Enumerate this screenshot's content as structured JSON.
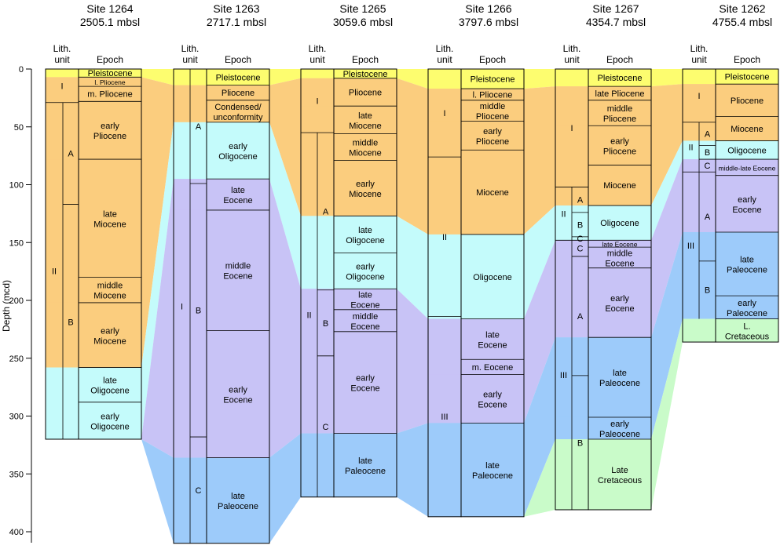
{
  "figure": {
    "axis": {
      "label": "Depth (mcd)",
      "ticks": [
        0,
        50,
        100,
        150,
        200,
        250,
        300,
        350,
        400
      ],
      "range": [
        0,
        410
      ]
    },
    "headers": {
      "lith": [
        "Lith.",
        "unit"
      ],
      "epoch": "Epoch"
    }
  },
  "colors": {
    "pleistocene": "#fdfd6f",
    "neogene": "#fbcd7e",
    "oligocene": "#c4fbfb",
    "eocene": "#c8c3f6",
    "paleocene": "#9dcbfa",
    "cretaceous": "#c9fbc9"
  },
  "sites": [
    {
      "name": "Site 1264",
      "depth": "2505.1 mbsl",
      "bottom": 320,
      "epochs": [
        {
          "label": "Pleistocene",
          "top": 0,
          "bottom": 7,
          "color": "pleistocene"
        },
        {
          "label": "l. Pliocene",
          "top": 7,
          "bottom": 15,
          "color": "neogene",
          "small": true
        },
        {
          "label": "m. Pliocene",
          "top": 15,
          "bottom": 28,
          "color": "neogene"
        },
        {
          "label": "early Pliocene",
          "top": 28,
          "bottom": 78,
          "color": "neogene"
        },
        {
          "label": "late Miocene",
          "top": 78,
          "bottom": 180,
          "color": "neogene"
        },
        {
          "label": "middle Miocene",
          "top": 180,
          "bottom": 202,
          "color": "neogene"
        },
        {
          "label": "early Miocene",
          "top": 202,
          "bottom": 258,
          "color": "neogene"
        },
        {
          "label": "late Oligocene",
          "top": 258,
          "bottom": 288,
          "color": "oligocene"
        },
        {
          "label": "early Oligocene",
          "top": 288,
          "bottom": 320,
          "color": "oligocene"
        }
      ],
      "units": [
        {
          "label": "I",
          "top": 0,
          "bottom": 29
        },
        {
          "label": "II",
          "top": 29,
          "bottom": 320,
          "subs": [
            {
              "label": "A",
              "top": 29,
              "bottom": 117
            },
            {
              "label": "B",
              "top": 117,
              "bottom": 320
            }
          ]
        }
      ]
    },
    {
      "name": "Site 1263",
      "depth": "2717.1 mbsl",
      "bottom": 410,
      "epochs": [
        {
          "label": "Pleistocene",
          "top": 0,
          "bottom": 14,
          "color": "pleistocene"
        },
        {
          "label": "Pliocene",
          "top": 14,
          "bottom": 27,
          "color": "neogene"
        },
        {
          "label": "Condensed/ unconformity",
          "top": 27,
          "bottom": 46,
          "color": "neogene"
        },
        {
          "label": "early Oligocene",
          "top": 46,
          "bottom": 95,
          "color": "oligocene"
        },
        {
          "label": "late Eocene",
          "top": 95,
          "bottom": 122,
          "color": "eocene"
        },
        {
          "label": "middle Eocene",
          "top": 122,
          "bottom": 226,
          "color": "eocene"
        },
        {
          "label": "early Eocene",
          "top": 226,
          "bottom": 336,
          "color": "eocene"
        },
        {
          "label": "late Paleocene",
          "top": 336,
          "bottom": 410,
          "color": "paleocene"
        }
      ],
      "units": [
        {
          "label": "I",
          "top": 0,
          "bottom": 410,
          "subs": [
            {
              "label": "A",
              "top": 0,
              "bottom": 99
            },
            {
              "label": "B",
              "top": 99,
              "bottom": 318
            },
            {
              "label": "C",
              "top": 318,
              "bottom": 410
            }
          ]
        }
      ]
    },
    {
      "name": "Site 1265",
      "depth": "3059.6 mbsl",
      "bottom": 370,
      "epochs": [
        {
          "label": "Pleistocene",
          "top": 0,
          "bottom": 8,
          "color": "pleistocene"
        },
        {
          "label": "Pliocene",
          "top": 8,
          "bottom": 32,
          "color": "neogene"
        },
        {
          "label": "late Miocene",
          "top": 32,
          "bottom": 56,
          "color": "neogene"
        },
        {
          "label": "middle Miocene",
          "top": 56,
          "bottom": 79,
          "color": "neogene"
        },
        {
          "label": "early Miocene",
          "top": 79,
          "bottom": 127,
          "color": "neogene"
        },
        {
          "label": "late Oligocene",
          "top": 127,
          "bottom": 159,
          "color": "oligocene"
        },
        {
          "label": "early Oligocene",
          "top": 159,
          "bottom": 190,
          "color": "oligocene"
        },
        {
          "label": "late Eocene",
          "top": 190,
          "bottom": 208,
          "color": "eocene"
        },
        {
          "label": "middle Eocene",
          "top": 208,
          "bottom": 227,
          "color": "eocene"
        },
        {
          "label": "early Eocene",
          "top": 227,
          "bottom": 315,
          "color": "eocene"
        },
        {
          "label": "late Paleocene",
          "top": 315,
          "bottom": 370,
          "color": "paleocene"
        }
      ],
      "units": [
        {
          "label": "I",
          "top": 0,
          "bottom": 55
        },
        {
          "label": "II",
          "top": 55,
          "bottom": 370,
          "subs": [
            {
              "label": "A",
              "top": 55,
              "bottom": 191
            },
            {
              "label": "B",
              "top": 191,
              "bottom": 248
            },
            {
              "label": "C",
              "top": 248,
              "bottom": 370
            }
          ]
        }
      ]
    },
    {
      "name": "Site 1266",
      "depth": "3797.6 mbsl",
      "bottom": 387,
      "epochs": [
        {
          "label": "Pleistocene",
          "top": 0,
          "bottom": 17,
          "color": "pleistocene"
        },
        {
          "label": "l. Pliocene",
          "top": 17,
          "bottom": 27,
          "color": "neogene"
        },
        {
          "label": "middle Pliocene",
          "top": 27,
          "bottom": 45,
          "color": "neogene"
        },
        {
          "label": "early Pliocene",
          "top": 45,
          "bottom": 70,
          "color": "neogene"
        },
        {
          "label": "Miocene",
          "top": 70,
          "bottom": 143,
          "color": "neogene"
        },
        {
          "label": "Oligocene",
          "top": 143,
          "bottom": 216,
          "color": "oligocene"
        },
        {
          "label": "late Eocene",
          "top": 216,
          "bottom": 251,
          "color": "eocene"
        },
        {
          "label": "m. Eocene",
          "top": 251,
          "bottom": 264,
          "color": "eocene"
        },
        {
          "label": "early Eocene",
          "top": 264,
          "bottom": 306,
          "color": "eocene"
        },
        {
          "label": "late Paleocene",
          "top": 306,
          "bottom": 387,
          "color": "paleocene"
        }
      ],
      "units": [
        {
          "label": "I",
          "top": 0,
          "bottom": 76
        },
        {
          "label": "II",
          "top": 76,
          "bottom": 214
        },
        {
          "label": "III",
          "top": 214,
          "bottom": 387
        }
      ]
    },
    {
      "name": "Site 1267",
      "depth": "4354.7 mbsl",
      "bottom": 381,
      "epochs": [
        {
          "label": "Pleistocene",
          "top": 0,
          "bottom": 15,
          "color": "pleistocene"
        },
        {
          "label": "late Pliocene",
          "top": 15,
          "bottom": 27,
          "color": "neogene"
        },
        {
          "label": "middle Pliocene",
          "top": 27,
          "bottom": 49,
          "color": "neogene"
        },
        {
          "label": "early Pliocene",
          "top": 49,
          "bottom": 83,
          "color": "neogene"
        },
        {
          "label": "Miocene",
          "top": 83,
          "bottom": 118,
          "color": "neogene"
        },
        {
          "label": "Oligocene",
          "top": 118,
          "bottom": 148,
          "color": "oligocene"
        },
        {
          "label": "late Eocene",
          "top": 148,
          "bottom": 154,
          "color": "eocene",
          "small": true
        },
        {
          "label": "middle Eocene",
          "top": 154,
          "bottom": 172,
          "color": "eocene"
        },
        {
          "label": "early Eocene",
          "top": 172,
          "bottom": 232,
          "color": "eocene"
        },
        {
          "label": "late Paleocene",
          "top": 232,
          "bottom": 301,
          "color": "paleocene"
        },
        {
          "label": "early Paleocene",
          "top": 301,
          "bottom": 320,
          "color": "paleocene"
        },
        {
          "label": "Late Cretaceous",
          "top": 320,
          "bottom": 381,
          "color": "cretaceous"
        }
      ],
      "units": [
        {
          "label": "I",
          "top": 0,
          "bottom": 102
        },
        {
          "label": "II",
          "top": 102,
          "bottom": 148,
          "subs": [
            {
              "label": "A",
              "top": 102,
              "bottom": 124
            },
            {
              "label": "B",
              "top": 124,
              "bottom": 145
            },
            {
              "label": "C",
              "top": 145,
              "bottom": 148
            }
          ]
        },
        {
          "label": "III",
          "top": 148,
          "bottom": 381,
          "subs": [
            {
              "label": "C",
              "top": 148,
              "bottom": 162
            },
            {
              "label": "A",
              "top": 162,
              "bottom": 265
            },
            {
              "label": "B",
              "top": 265,
              "bottom": 381
            }
          ]
        }
      ]
    },
    {
      "name": "Site 1262",
      "depth": "4755.4 mbsl",
      "bottom": 236,
      "epochs": [
        {
          "label": "Pleistocene",
          "top": 0,
          "bottom": 13,
          "color": "pleistocene"
        },
        {
          "label": "Pliocene",
          "top": 13,
          "bottom": 41,
          "color": "neogene"
        },
        {
          "label": "Miocene",
          "top": 41,
          "bottom": 62,
          "color": "neogene"
        },
        {
          "label": "Oligocene",
          "top": 62,
          "bottom": 78,
          "color": "oligocene"
        },
        {
          "label": "middle-late Eocene",
          "top": 78,
          "bottom": 92,
          "color": "eocene",
          "small": true
        },
        {
          "label": "early Eocene",
          "top": 92,
          "bottom": 141,
          "color": "eocene"
        },
        {
          "label": "late Paleocene",
          "top": 141,
          "bottom": 196,
          "color": "paleocene"
        },
        {
          "label": "early Paleocene",
          "top": 196,
          "bottom": 216,
          "color": "paleocene"
        },
        {
          "label": "L. Cretaceous",
          "top": 216,
          "bottom": 236,
          "color": "cretaceous"
        }
      ],
      "units": [
        {
          "label": "I",
          "top": 0,
          "bottom": 46
        },
        {
          "label": "II",
          "top": 46,
          "bottom": 89,
          "subs": [
            {
              "label": "A",
              "top": 46,
              "bottom": 66
            },
            {
              "label": "B",
              "top": 66,
              "bottom": 78
            },
            {
              "label": "C",
              "top": 78,
              "bottom": 89
            }
          ]
        },
        {
          "label": "III",
          "top": 89,
          "bottom": 216,
          "subs": [
            {
              "label": "A",
              "top": 89,
              "bottom": 166
            },
            {
              "label": "B",
              "top": 166,
              "bottom": 216
            }
          ]
        }
      ]
    }
  ],
  "bands": [
    {
      "color": "pleistocene",
      "depths": [
        [
          0,
          7
        ],
        [
          0,
          14
        ],
        [
          0,
          8
        ],
        [
          0,
          17
        ],
        [
          0,
          15
        ],
        [
          0,
          13
        ]
      ]
    },
    {
      "color": "neogene",
      "depths": [
        [
          7,
          258
        ],
        [
          14,
          46
        ],
        [
          8,
          127
        ],
        [
          17,
          143
        ],
        [
          15,
          118
        ],
        [
          13,
          62
        ]
      ]
    },
    {
      "color": "oligocene",
      "depths": [
        [
          258,
          320
        ],
        [
          46,
          95
        ],
        [
          127,
          190
        ],
        [
          143,
          216
        ],
        [
          118,
          148
        ],
        [
          62,
          78
        ]
      ]
    },
    {
      "color": "eocene",
      "depths": [
        [
          320,
          320
        ],
        [
          95,
          336
        ],
        [
          190,
          315
        ],
        [
          216,
          306
        ],
        [
          148,
          232
        ],
        [
          78,
          141
        ]
      ]
    },
    {
      "color": "paleocene",
      "depths": [
        [
          320,
          320
        ],
        [
          336,
          410
        ],
        [
          315,
          370
        ],
        [
          306,
          387
        ],
        [
          232,
          320
        ],
        [
          141,
          216
        ]
      ]
    },
    {
      "color": "cretaceous",
      "depths": [
        [
          320,
          320
        ],
        [
          410,
          410
        ],
        [
          370,
          370
        ],
        [
          387,
          387
        ],
        [
          320,
          381
        ],
        [
          216,
          236
        ]
      ]
    }
  ]
}
